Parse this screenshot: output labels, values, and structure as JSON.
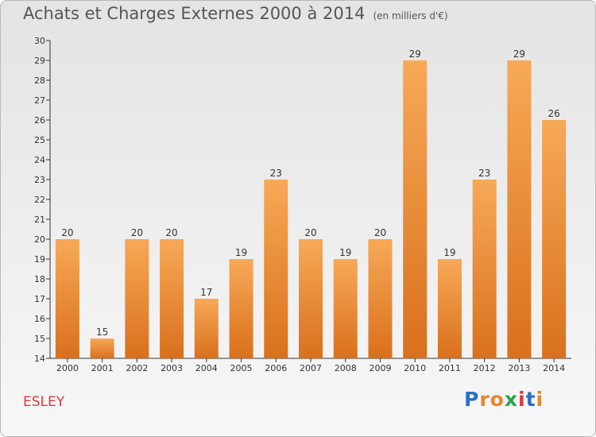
{
  "title": "Achats et Charges Externes 2000 à 2014",
  "subtitle": "(en milliers d'€)",
  "commune": "ESLEY",
  "logo": {
    "text": "Proxiti",
    "colors": [
      "#2a6ec6",
      "#e8862a",
      "#e8862a",
      "#2aa34a",
      "#e0383e",
      "#2a6ec6",
      "#e8862a"
    ]
  },
  "colors": {
    "bar_top": "#f7a957",
    "bar_bottom": "#d9701c",
    "title": "#555555",
    "commune": "#e0383e"
  },
  "chart_data": {
    "type": "bar",
    "categories": [
      "2000",
      "2001",
      "2002",
      "2003",
      "2004",
      "2005",
      "2006",
      "2007",
      "2008",
      "2009",
      "2010",
      "2011",
      "2012",
      "2013",
      "2014"
    ],
    "values": [
      20,
      15,
      20,
      20,
      17,
      19,
      23,
      20,
      19,
      20,
      29,
      19,
      23,
      29,
      26
    ],
    "ylim": [
      14,
      30
    ],
    "yticks": [
      14,
      15,
      16,
      17,
      18,
      19,
      20,
      21,
      22,
      23,
      24,
      25,
      26,
      27,
      28,
      29,
      30
    ],
    "grid": false,
    "legend": "none",
    "xlabel": "",
    "ylabel": ""
  }
}
